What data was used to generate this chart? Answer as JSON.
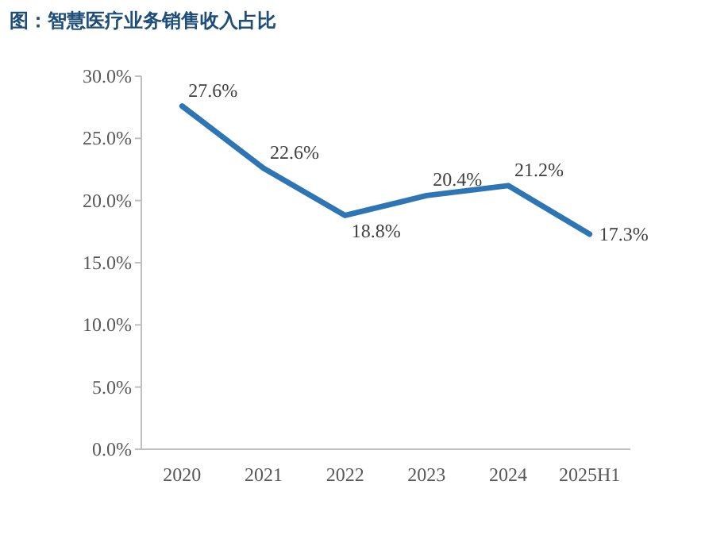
{
  "chart_data": {
    "type": "line",
    "title": "图：智慧医疗业务销售收入占比",
    "categories": [
      "2020",
      "2021",
      "2022",
      "2023",
      "2024",
      "2025H1"
    ],
    "series": [
      {
        "color": "#2e75b6",
        "values": [
          27.6,
          22.6,
          18.8,
          20.4,
          21.2,
          17.3
        ],
        "value_labels": [
          "27.6%",
          "22.6%",
          "18.8%",
          "20.4%",
          "21.2%",
          "17.3%"
        ]
      }
    ],
    "ylim": [
      0,
      30
    ],
    "yticks": [
      {
        "value": 0,
        "label": "0.0%"
      },
      {
        "value": 5,
        "label": "5.0%"
      },
      {
        "value": 10,
        "label": "10.0%"
      },
      {
        "value": 15,
        "label": "15.0%"
      },
      {
        "value": 20,
        "label": "20.0%"
      },
      {
        "value": 25,
        "label": "25.0%"
      },
      {
        "value": 30,
        "label": "30.0%"
      }
    ],
    "grid": false,
    "marker": "none",
    "line_style": "solid"
  }
}
